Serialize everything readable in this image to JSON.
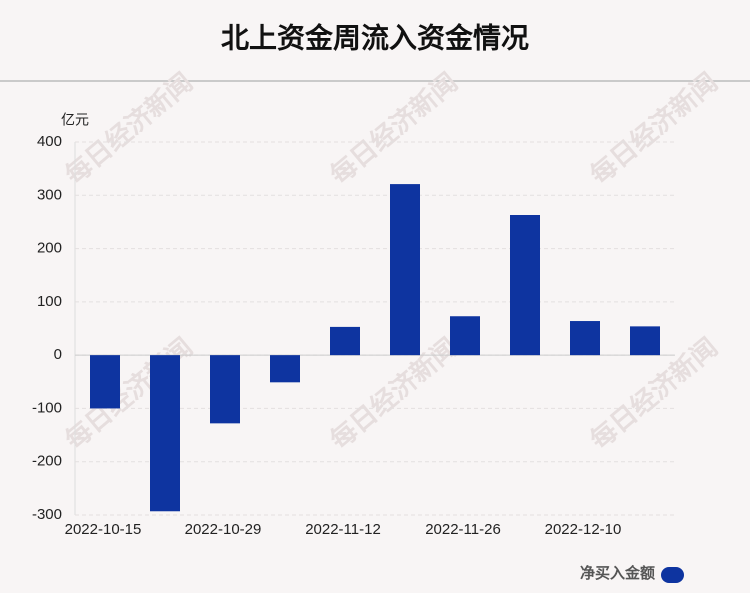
{
  "chart_data": {
    "type": "bar",
    "title": "北上资金周流入资金情况",
    "y_label": "亿元",
    "categories": [
      "2022-10-15",
      null,
      "2022-10-29",
      null,
      "2022-11-12",
      null,
      "2022-11-26",
      null,
      "2022-12-10",
      null
    ],
    "series": [
      {
        "name": "净买入金额",
        "color": "#0e34a0",
        "values": [
          -100,
          -293,
          -128,
          -51,
          53,
          321,
          73,
          263,
          64,
          54
        ]
      }
    ],
    "ylim": [
      -300,
      400
    ],
    "yticks": [
      -300,
      -200,
      -100,
      0,
      100,
      200,
      300,
      400
    ],
    "grid": true,
    "watermark": "每日经济新闻"
  }
}
